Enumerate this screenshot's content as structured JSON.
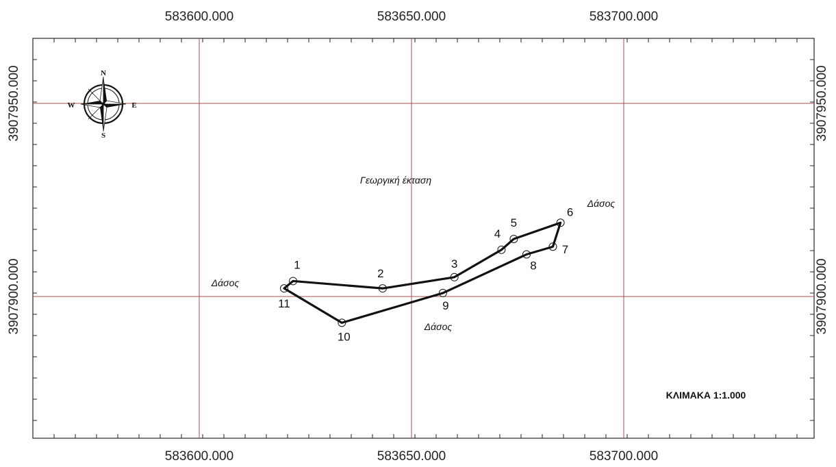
{
  "colors": {
    "grid": "#a05050",
    "frame": "#222222",
    "parcel": "#111111",
    "text": "#111111"
  },
  "grid": {
    "easting_labels": [
      "583600.000",
      "583650.000",
      "583700.000"
    ],
    "northing_labels": [
      "3907950.000",
      "3907900.000"
    ]
  },
  "compass": {
    "icon": "compass-rose-icon",
    "north": "N",
    "south": "S",
    "east": "E",
    "west": "W"
  },
  "parcel": {
    "vertices": [
      {
        "label": "1",
        "e": 583622.1,
        "n": 3907904.0
      },
      {
        "label": "2",
        "e": 583643.2,
        "n": 3907902.1
      },
      {
        "label": "3",
        "e": 583660.1,
        "n": 3907905.0
      },
      {
        "label": "4",
        "e": 583671.2,
        "n": 3907912.1
      },
      {
        "label": "5",
        "e": 583674.1,
        "n": 3907914.9
      },
      {
        "label": "6",
        "e": 583685.1,
        "n": 3907919.1
      },
      {
        "label": "7",
        "e": 583683.3,
        "n": 3907912.9
      },
      {
        "label": "8",
        "e": 583677.1,
        "n": 3907910.9
      },
      {
        "label": "9",
        "e": 583657.4,
        "n": 3907900.9
      },
      {
        "label": "10",
        "e": 583633.6,
        "n": 3907893.2
      },
      {
        "label": "11",
        "e": 583620.0,
        "n": 3907902.1
      }
    ]
  },
  "areas": {
    "agricultural": "Γεωργική έκταση",
    "forest_east": "Δάσος",
    "forest_west": "Δάσος",
    "forest_south": "Δάσος"
  },
  "scale": {
    "label": "ΚΛΙΜΑΚΑ 1:1.000"
  }
}
